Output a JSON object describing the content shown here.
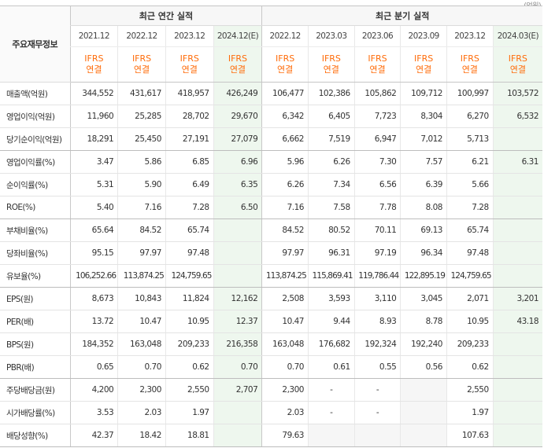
{
  "unit_note": "(억원)",
  "header": {
    "label_column": "주요재무정보",
    "annual_group": "최근 연간 실적",
    "quarter_group": "최근 분기 실적",
    "periods": [
      "2021.12",
      "2022.12",
      "2023.12",
      "2024.12(E)",
      "2022.12",
      "2023.03",
      "2023.06",
      "2023.09",
      "2023.12",
      "2024.03(E)"
    ],
    "standard_line1": "IFRS",
    "standard_line2": "연결"
  },
  "colors": {
    "estimate_bg": "#eef7ee",
    "ifrs_text": "#ff6c0a",
    "empty_cell_bg": "#f6f6f6"
  },
  "rows": [
    {
      "label": "매출액(억원)",
      "values": [
        "344,552",
        "431,617",
        "418,957",
        "426,249",
        "106,477",
        "102,386",
        "105,862",
        "109,712",
        "100,997",
        "103,572"
      ]
    },
    {
      "label": "영업이익(억원)",
      "values": [
        "11,960",
        "25,285",
        "28,702",
        "29,670",
        "6,342",
        "6,405",
        "7,723",
        "8,304",
        "6,270",
        "6,532"
      ]
    },
    {
      "label": "당기순이익(억원)",
      "values": [
        "18,291",
        "25,450",
        "27,191",
        "27,079",
        "6,662",
        "7,519",
        "6,947",
        "7,012",
        "5,713",
        ""
      ]
    },
    {
      "label": "영업이익률(%)",
      "values": [
        "3.47",
        "5.86",
        "6.85",
        "6.96",
        "5.96",
        "6.26",
        "7.30",
        "7.57",
        "6.21",
        "6.31"
      ]
    },
    {
      "label": "순이익률(%)",
      "values": [
        "5.31",
        "5.90",
        "6.49",
        "6.35",
        "6.26",
        "7.34",
        "6.56",
        "6.39",
        "5.66",
        ""
      ]
    },
    {
      "label": "ROE(%)",
      "values": [
        "5.40",
        "7.16",
        "7.28",
        "6.50",
        "7.16",
        "7.58",
        "7.78",
        "8.08",
        "7.28",
        ""
      ]
    },
    {
      "label": "부채비율(%)",
      "values": [
        "65.64",
        "84.52",
        "65.74",
        "",
        "84.52",
        "80.52",
        "70.11",
        "69.13",
        "65.74",
        ""
      ]
    },
    {
      "label": "당좌비율(%)",
      "values": [
        "95.15",
        "97.97",
        "97.48",
        "",
        "97.97",
        "96.31",
        "97.19",
        "96.34",
        "97.48",
        ""
      ]
    },
    {
      "label": "유보율(%)",
      "values": [
        "106,252.66",
        "113,874.25",
        "124,759.65",
        "",
        "113,874.25",
        "115,869.41",
        "119,786.44",
        "122,895.19",
        "124,759.65",
        ""
      ]
    },
    {
      "label": "EPS(원)",
      "values": [
        "8,673",
        "10,843",
        "11,824",
        "12,162",
        "2,508",
        "3,593",
        "3,110",
        "3,045",
        "2,071",
        "3,201"
      ]
    },
    {
      "label": "PER(배)",
      "values": [
        "13.72",
        "10.47",
        "10.95",
        "12.37",
        "10.47",
        "9.44",
        "8.93",
        "8.78",
        "10.95",
        "43.18"
      ]
    },
    {
      "label": "BPS(원)",
      "values": [
        "184,352",
        "163,048",
        "209,233",
        "216,358",
        "163,048",
        "176,682",
        "192,324",
        "192,240",
        "209,233",
        ""
      ]
    },
    {
      "label": "PBR(배)",
      "values": [
        "0.65",
        "0.70",
        "0.62",
        "0.70",
        "0.70",
        "0.61",
        "0.55",
        "0.56",
        "0.62",
        ""
      ]
    },
    {
      "label": "주당배당금(원)",
      "values": [
        "4,200",
        "2,300",
        "2,550",
        "2,707",
        "2,300",
        "-",
        "-",
        "",
        "2,550",
        ""
      ]
    },
    {
      "label": "시가배당률(%)",
      "values": [
        "3.53",
        "2.03",
        "1.97",
        "",
        "2.03",
        "-",
        "-",
        "",
        "1.97",
        ""
      ]
    },
    {
      "label": "배당성향(%)",
      "values": [
        "42.37",
        "18.42",
        "18.81",
        "",
        "79.63",
        "",
        "",
        "",
        "107.63",
        ""
      ]
    }
  ]
}
